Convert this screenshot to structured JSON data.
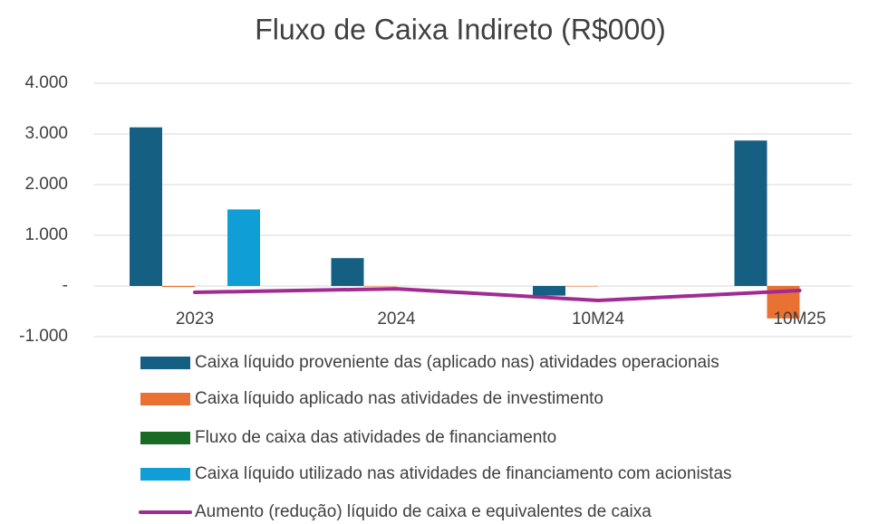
{
  "chart_data": {
    "type": "bar",
    "title": "Fluxo de Caixa Indireto (R$000)",
    "categories": [
      "2023",
      "2024",
      "10M24",
      "10M25"
    ],
    "series": [
      {
        "name": "Caixa líquido proveniente das (aplicado nas) atividades operacionais",
        "color": "#156082",
        "values": [
          3130,
          550,
          -190,
          2870
        ]
      },
      {
        "name": "Caixa líquido aplicado nas atividades de investimento",
        "color": "#e97132",
        "values": [
          -20,
          -10,
          -10,
          -640
        ]
      },
      {
        "name": "Fluxo de caixa das atividades de financiamento",
        "color": "#196b24",
        "values": [
          0,
          0,
          0,
          0
        ]
      },
      {
        "name": "Caixa líquido utilizado nas atividades de financiamento com acionistas",
        "color": "#0f9ed5",
        "values": [
          1510,
          0,
          0,
          0
        ]
      },
      {
        "name": "Aumento (redução) líquido de caixa e equivalentes de caixa",
        "color": "#a02b93",
        "type": "line",
        "values": [
          -125,
          -55,
          -285,
          -90
        ]
      }
    ],
    "ylim": [
      -1000,
      4000
    ],
    "yticks": [
      {
        "value": -1000,
        "label": "-1.000"
      },
      {
        "value": 0,
        "label": "-"
      },
      {
        "value": 1000,
        "label": "1.000"
      },
      {
        "value": 2000,
        "label": "2.000"
      },
      {
        "value": 3000,
        "label": "3.000"
      },
      {
        "value": 4000,
        "label": "4.000"
      }
    ],
    "grid": true
  }
}
